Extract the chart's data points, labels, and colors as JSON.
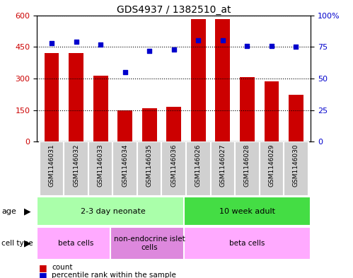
{
  "title": "GDS4937 / 1382510_at",
  "samples": [
    "GSM1146031",
    "GSM1146032",
    "GSM1146033",
    "GSM1146034",
    "GSM1146035",
    "GSM1146036",
    "GSM1146026",
    "GSM1146027",
    "GSM1146028",
    "GSM1146029",
    "GSM1146030"
  ],
  "counts": [
    420,
    420,
    315,
    148,
    158,
    165,
    583,
    583,
    308,
    285,
    222
  ],
  "percentiles": [
    78,
    79,
    77,
    55,
    72,
    73,
    80,
    80,
    76,
    76,
    75
  ],
  "bar_color": "#cc0000",
  "dot_color": "#0000cc",
  "ylim_left": [
    0,
    600
  ],
  "ylim_right": [
    0,
    100
  ],
  "yticks_left": [
    0,
    150,
    300,
    450,
    600
  ],
  "yticks_right": [
    0,
    25,
    50,
    75,
    100
  ],
  "ytick_labels_left": [
    "0",
    "150",
    "300",
    "450",
    "600"
  ],
  "ytick_labels_right": [
    "0",
    "25",
    "50",
    "75",
    "100%"
  ],
  "age_groups": [
    {
      "label": "2-3 day neonate",
      "start": 0,
      "end": 6,
      "color": "#aaffaa"
    },
    {
      "label": "10 week adult",
      "start": 6,
      "end": 11,
      "color": "#44dd44"
    }
  ],
  "cell_type_groups": [
    {
      "label": "beta cells",
      "start": 0,
      "end": 3,
      "color": "#ffaaff"
    },
    {
      "label": "non-endocrine islet\ncells",
      "start": 3,
      "end": 6,
      "color": "#dd88dd"
    },
    {
      "label": "beta cells",
      "start": 6,
      "end": 11,
      "color": "#ffaaff"
    }
  ],
  "background_color": "#ffffff",
  "plot_bg_color": "#ffffff",
  "tick_label_color_left": "#cc0000",
  "tick_label_color_right": "#0000cc",
  "sample_box_color": "#d0d0d0",
  "border_color": "#000000"
}
